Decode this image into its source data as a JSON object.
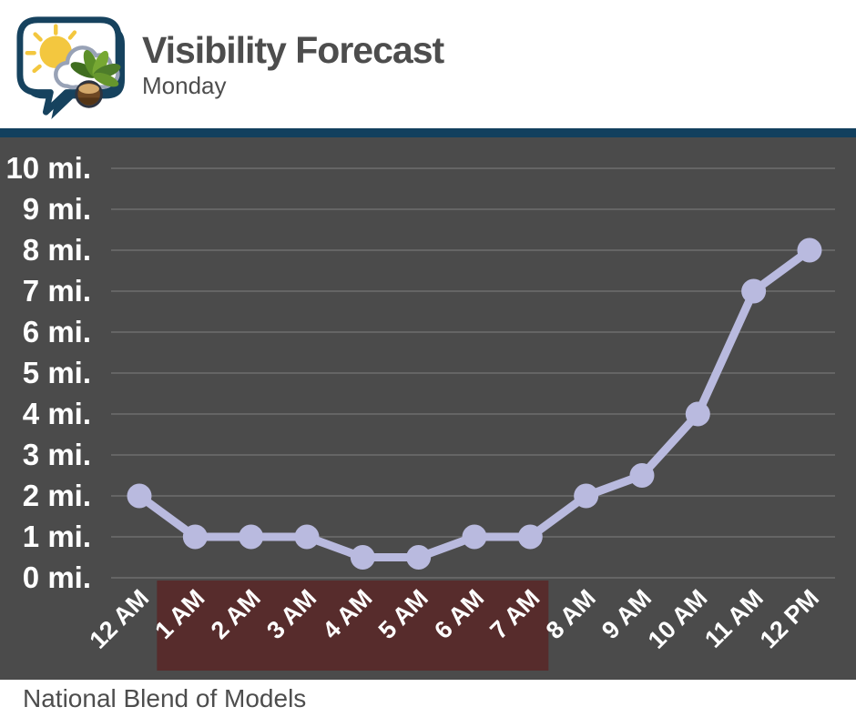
{
  "header": {
    "title": "Visibility Forecast",
    "subtitle": "Monday",
    "logo": "sun-cloud-buckeye-speech-bubble-logo"
  },
  "footer": {
    "source": "National Blend of Models"
  },
  "colors": {
    "topbar": "#12405e",
    "chart_background": "#4b4b4b",
    "gridline": "#6e6e6e",
    "line": "#b9badf",
    "highlight": "#572c2c",
    "axis_text": "#ffffff",
    "header_text": "#4d4d4d"
  },
  "chart_data": {
    "type": "line",
    "title": "Visibility Forecast",
    "subtitle": "Monday",
    "categories": [
      "12 AM",
      "1 AM",
      "2 AM",
      "3 AM",
      "4 AM",
      "5 AM",
      "6 AM",
      "7 AM",
      "8 AM",
      "9 AM",
      "10 AM",
      "11 AM",
      "12 PM"
    ],
    "values": [
      2,
      1,
      1,
      1,
      0.5,
      0.5,
      1,
      1,
      2,
      2.5,
      4,
      7,
      8
    ],
    "unit": "mi.",
    "ylim": [
      0,
      10
    ],
    "ytick_step": 1,
    "ytick_labels": [
      "0 mi.",
      "1 mi.",
      "2 mi.",
      "3 mi.",
      "4 mi.",
      "5 mi.",
      "6 mi.",
      "7 mi.",
      "8 mi.",
      "9 mi.",
      "10 mi."
    ],
    "grid": "horizontal",
    "legend": "none",
    "line_color": "#b9badf",
    "marker": "circle",
    "marker_color": "#b9badf",
    "plot_background": "#4b4b4b",
    "highlight_region": {
      "from": "1 AM",
      "to": "7 AM",
      "color": "#572c2c"
    },
    "source": "National Blend of Models"
  }
}
